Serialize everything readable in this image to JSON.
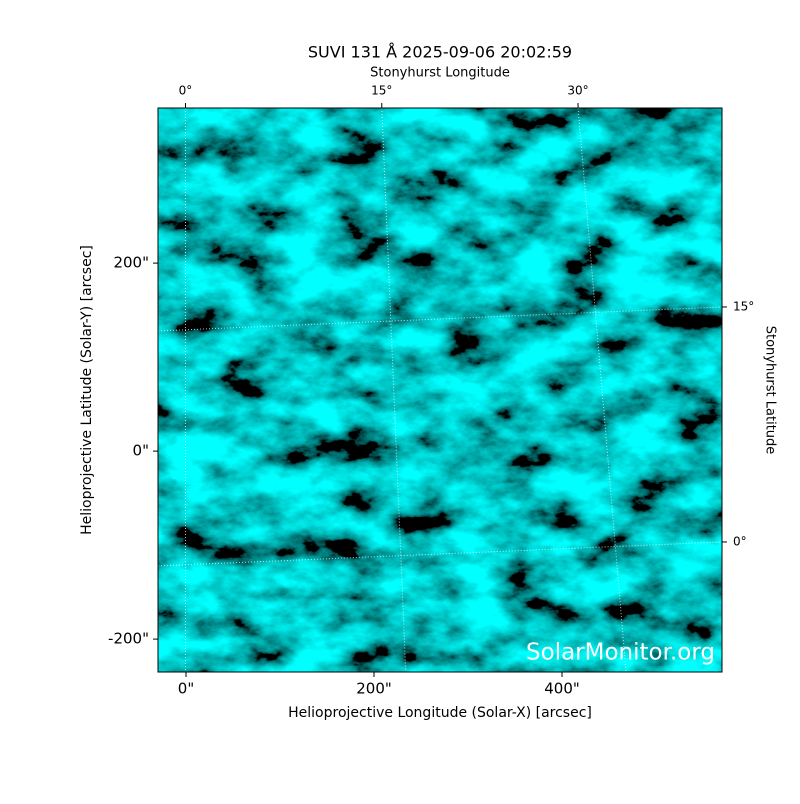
{
  "chart_data": {
    "type": "image",
    "title": "SUVI 131 Å 2025-09-06 20:02:59",
    "xlabel": "Helioprojective Longitude (Solar-X) [arcsec]",
    "ylabel": "Helioprojective Latitude (Solar-Y) [arcsec]",
    "x2label": "Stonyhurst Longitude",
    "y2label": "Stonyhurst Latitude",
    "watermark": "SolarMonitor.org",
    "xlim": [
      -29.8,
      570.2
    ],
    "ylim": [
      -235,
      365
    ],
    "xticks": [
      {
        "value": 0,
        "label": "0\""
      },
      {
        "value": 200,
        "label": "200\""
      },
      {
        "value": 400,
        "label": "400\""
      }
    ],
    "yticks": [
      {
        "value": -200,
        "label": "-200\""
      },
      {
        "value": 0,
        "label": "0\""
      },
      {
        "value": 200,
        "label": "200\""
      }
    ],
    "x2lim": [
      -2.1,
      41.0
    ],
    "x2ticks": [
      {
        "value": 0,
        "label": "0°"
      },
      {
        "value": 15,
        "label": "15°"
      },
      {
        "value": 30,
        "label": "30°"
      }
    ],
    "y2lim": [
      -8.3,
      27.7
    ],
    "y2ticks": [
      {
        "value": 0,
        "label": "0°"
      },
      {
        "value": 15,
        "label": "15°"
      }
    ],
    "grid": true
  }
}
